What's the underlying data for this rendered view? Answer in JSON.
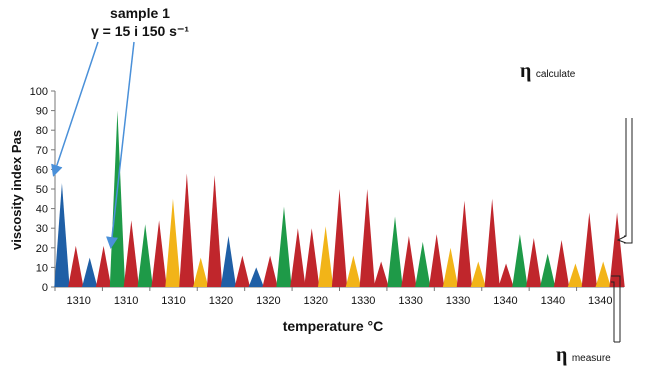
{
  "annotations": {
    "sample_line1": "sample 1",
    "sample_line2": "γ = 15 i 150 s⁻¹",
    "eta_symbol": "η",
    "eta_calculate": "calculate",
    "eta_measure": "measure"
  },
  "colors": {
    "blue": "#1f5fa6",
    "red": "#c0262c",
    "green": "#1e9a48",
    "yellow": "#f2b418",
    "arrow": "#4a90d9"
  },
  "chart_data": {
    "type": "bar",
    "title": "",
    "xlabel": "temperature °C",
    "ylabel": "viscosity index Pas",
    "ylim": [
      0,
      100
    ],
    "yticks": [
      0,
      10,
      20,
      30,
      40,
      50,
      60,
      70,
      80,
      90,
      100
    ],
    "xtick_labels": [
      "1310",
      "1310",
      "1310",
      "1320",
      "1320",
      "1320",
      "1330",
      "1330",
      "1330",
      "1340",
      "1340",
      "1340"
    ],
    "grid": false,
    "series_colors": [
      "blue",
      "red",
      "blue",
      "red",
      "green",
      "red",
      "green",
      "red",
      "yellow",
      "red",
      "yellow",
      "red",
      "blue",
      "red",
      "blue",
      "red",
      "green",
      "red",
      "red",
      "yellow",
      "red",
      "yellow",
      "red",
      "red",
      "green",
      "red",
      "green",
      "red",
      "yellow",
      "red",
      "yellow",
      "red",
      "red",
      "green",
      "red",
      "green",
      "red",
      "yellow",
      "red",
      "yellow",
      "red"
    ],
    "values": [
      53,
      21,
      15,
      21,
      90,
      34,
      32,
      34,
      45,
      58,
      15,
      57,
      26,
      16,
      10,
      16,
      41,
      30,
      30,
      31,
      50,
      16,
      50,
      13,
      36,
      26,
      23,
      27,
      20,
      44,
      13,
      45,
      12,
      27,
      25,
      17,
      24,
      12,
      38,
      13,
      38
    ],
    "baseline_values": [
      4,
      4,
      4,
      4,
      4,
      4,
      4,
      4,
      4,
      4,
      4,
      4,
      4,
      4,
      4,
      4,
      4,
      4,
      4,
      4,
      4,
      4,
      4,
      4,
      4,
      4,
      4,
      4,
      4,
      4,
      4,
      4,
      4,
      4,
      4,
      4,
      4,
      4,
      4,
      4,
      4
    ]
  }
}
